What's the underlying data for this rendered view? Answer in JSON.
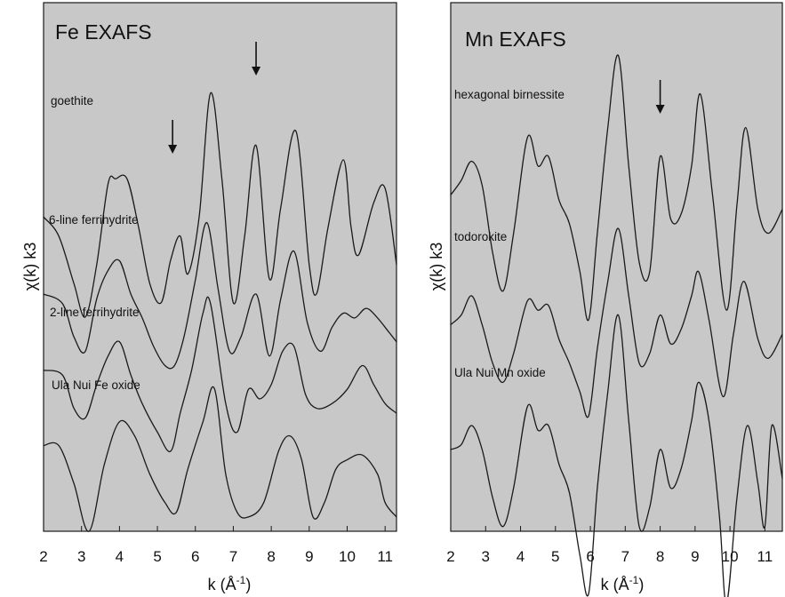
{
  "chart_data": [
    {
      "type": "line",
      "title": "Fe EXAFS",
      "xlabel": "k (Å",
      "xlabel_sup": "-1",
      "xlabel_close": ")",
      "ylabel": "χ(k) k3",
      "xlim": [
        2,
        11.3
      ],
      "ylim": [
        -6.6,
        4.5
      ],
      "xticks": [
        "2",
        "3",
        "4",
        "5",
        "6",
        "7",
        "8",
        "9",
        "10",
        "11"
      ],
      "series": [
        {
          "name": "goethite",
          "offset": 0,
          "x": [
            2.0,
            2.4,
            2.8,
            3.1,
            3.4,
            3.7,
            3.9,
            4.2,
            4.5,
            4.8,
            5.1,
            5.35,
            5.6,
            5.8,
            6.1,
            6.4,
            6.7,
            7.0,
            7.3,
            7.6,
            7.95,
            8.25,
            8.65,
            9.0,
            9.2,
            9.5,
            9.9,
            10.1,
            10.3,
            10.7,
            11.0,
            11.3
          ],
          "y": [
            0.0,
            -0.4,
            -1.4,
            -2.1,
            -1.0,
            0.7,
            0.8,
            0.8,
            -0.2,
            -1.4,
            -1.8,
            -0.9,
            -0.4,
            -1.2,
            0.0,
            2.6,
            0.8,
            -1.8,
            -0.4,
            1.5,
            -1.3,
            0.2,
            1.8,
            -1.0,
            -1.6,
            -0.2,
            1.2,
            -0.2,
            -0.8,
            0.3,
            0.6,
            -1.0
          ]
        },
        {
          "name": "6-line ferrihydrite",
          "offset": -1.92,
          "x": [
            2.0,
            2.5,
            2.8,
            3.1,
            3.4,
            3.7,
            4.0,
            4.3,
            4.6,
            4.9,
            5.2,
            5.45,
            5.7,
            6.0,
            6.3,
            6.6,
            6.9,
            7.2,
            7.6,
            7.95,
            8.25,
            8.6,
            8.95,
            9.3,
            9.6,
            9.9,
            10.2,
            10.5,
            10.8,
            11.1,
            11.3
          ],
          "y": [
            0.3,
            0.1,
            -0.6,
            -0.9,
            0.2,
            0.8,
            1.0,
            0.3,
            -0.2,
            -0.8,
            -1.2,
            -1.2,
            -0.6,
            0.6,
            1.8,
            0.4,
            -0.9,
            -0.6,
            0.3,
            -1.0,
            0.2,
            1.2,
            -0.3,
            -0.9,
            -0.4,
            -0.1,
            -0.2,
            0.0,
            -0.2,
            -0.5,
            -0.7
          ]
        },
        {
          "name": "2-line ferrihydrite",
          "offset": -3.32,
          "x": [
            2.0,
            2.5,
            2.8,
            3.1,
            3.4,
            3.7,
            4.0,
            4.3,
            4.6,
            5.0,
            5.35,
            5.6,
            5.9,
            6.2,
            6.4,
            6.8,
            7.1,
            7.4,
            7.7,
            8.0,
            8.3,
            8.6,
            8.9,
            9.2,
            9.6,
            10.0,
            10.4,
            10.7,
            11.0,
            11.3
          ],
          "y": [
            0.1,
            0.0,
            -0.7,
            -0.9,
            -0.2,
            0.4,
            0.7,
            0.0,
            -0.6,
            -1.2,
            -1.6,
            -0.8,
            0.1,
            1.3,
            1.5,
            -0.6,
            -1.2,
            -0.3,
            -0.5,
            -0.2,
            0.5,
            0.6,
            -0.4,
            -0.7,
            -0.6,
            -0.3,
            0.2,
            -0.2,
            -0.6,
            -0.8
          ]
        },
        {
          "name": "Ula Nui Fe oxide",
          "offset": -4.8,
          "x": [
            2.0,
            2.4,
            2.8,
            3.2,
            3.6,
            4.0,
            4.4,
            4.8,
            5.2,
            5.5,
            5.8,
            6.2,
            6.5,
            6.8,
            7.1,
            7.4,
            7.8,
            8.2,
            8.5,
            8.8,
            9.1,
            9.4,
            9.7,
            10.0,
            10.4,
            10.8,
            11.0,
            11.3
          ],
          "y": [
            0.0,
            0.0,
            -0.8,
            -1.8,
            -0.4,
            0.5,
            0.2,
            -0.6,
            -1.2,
            -1.4,
            -0.5,
            0.5,
            1.2,
            -0.6,
            -1.4,
            -1.5,
            -1.2,
            -0.1,
            0.2,
            -0.3,
            -1.5,
            -1.2,
            -0.5,
            -0.3,
            -0.2,
            -0.6,
            -1.2,
            -1.5
          ]
        }
      ],
      "arrows_x": [
        5.4,
        7.6
      ]
    },
    {
      "type": "line",
      "title": "Mn EXAFS",
      "xlabel": "k (Å",
      "xlabel_sup": "-1",
      "xlabel_close": ")",
      "ylabel": "χ(k) k3",
      "xlim": [
        2,
        11.5
      ],
      "ylim": [
        -7.0,
        4.0
      ],
      "xticks": [
        "2",
        "3",
        "4",
        "5",
        "6",
        "7",
        "8",
        "9",
        "10",
        "11"
      ],
      "series": [
        {
          "name": "hexagonal birnessite",
          "offset": 0,
          "x": [
            2.0,
            2.3,
            2.6,
            2.9,
            3.2,
            3.5,
            3.8,
            4.2,
            4.5,
            4.8,
            5.1,
            5.4,
            5.7,
            5.95,
            6.2,
            6.5,
            6.8,
            7.1,
            7.4,
            7.7,
            8.0,
            8.3,
            8.6,
            8.9,
            9.15,
            9.5,
            9.9,
            10.2,
            10.45,
            10.8,
            11.1,
            11.5
          ],
          "y": [
            0.0,
            0.3,
            0.7,
            0.2,
            -1.2,
            -2.0,
            -0.8,
            1.2,
            0.6,
            0.8,
            -0.1,
            -0.6,
            -1.6,
            -2.6,
            -0.8,
            1.4,
            2.9,
            0.6,
            -1.4,
            -1.6,
            0.8,
            -0.5,
            -0.4,
            0.6,
            2.1,
            0.0,
            -2.4,
            -0.2,
            1.4,
            -0.3,
            -0.8,
            -0.3
          ]
        },
        {
          "name": "todorokite",
          "offset": -2.7,
          "x": [
            2.0,
            2.3,
            2.6,
            2.9,
            3.2,
            3.5,
            3.8,
            4.2,
            4.5,
            4.8,
            5.1,
            5.4,
            5.7,
            5.95,
            6.2,
            6.5,
            6.8,
            7.1,
            7.4,
            7.7,
            8.0,
            8.3,
            8.6,
            8.9,
            9.1,
            9.4,
            9.8,
            10.1,
            10.4,
            10.8,
            11.1,
            11.5
          ],
          "y": [
            0.0,
            0.2,
            0.6,
            0.0,
            -0.8,
            -1.2,
            -0.6,
            0.5,
            0.3,
            0.4,
            -0.3,
            -0.8,
            -1.4,
            -1.9,
            -0.5,
            0.9,
            2.0,
            0.6,
            -0.8,
            -0.6,
            0.2,
            -0.4,
            -0.1,
            0.6,
            1.1,
            0.1,
            -1.5,
            -0.2,
            0.9,
            -0.3,
            -0.7,
            -0.2
          ]
        },
        {
          "name": "Ula Nui Mn oxide",
          "offset": -5.3,
          "x": [
            2.0,
            2.3,
            2.6,
            2.9,
            3.2,
            3.5,
            3.8,
            4.2,
            4.5,
            4.8,
            5.1,
            5.4,
            5.7,
            5.95,
            6.2,
            6.5,
            6.8,
            7.1,
            7.4,
            7.7,
            8.0,
            8.3,
            8.6,
            8.9,
            9.1,
            9.4,
            9.7,
            9.9,
            10.2,
            10.5,
            10.8,
            11.0,
            11.2,
            11.5
          ],
          "y": [
            0.0,
            0.1,
            0.5,
            0.0,
            -1.0,
            -1.6,
            -0.8,
            0.9,
            0.4,
            0.5,
            -0.3,
            -0.9,
            -2.2,
            -3.0,
            -0.8,
            1.2,
            2.8,
            0.6,
            -1.6,
            -1.2,
            0.0,
            -0.8,
            -0.4,
            0.6,
            1.4,
            0.6,
            -1.4,
            -3.2,
            -1.0,
            0.5,
            -0.7,
            -1.6,
            0.5,
            -0.6
          ]
        }
      ],
      "arrows_x": [
        8.0
      ]
    }
  ]
}
